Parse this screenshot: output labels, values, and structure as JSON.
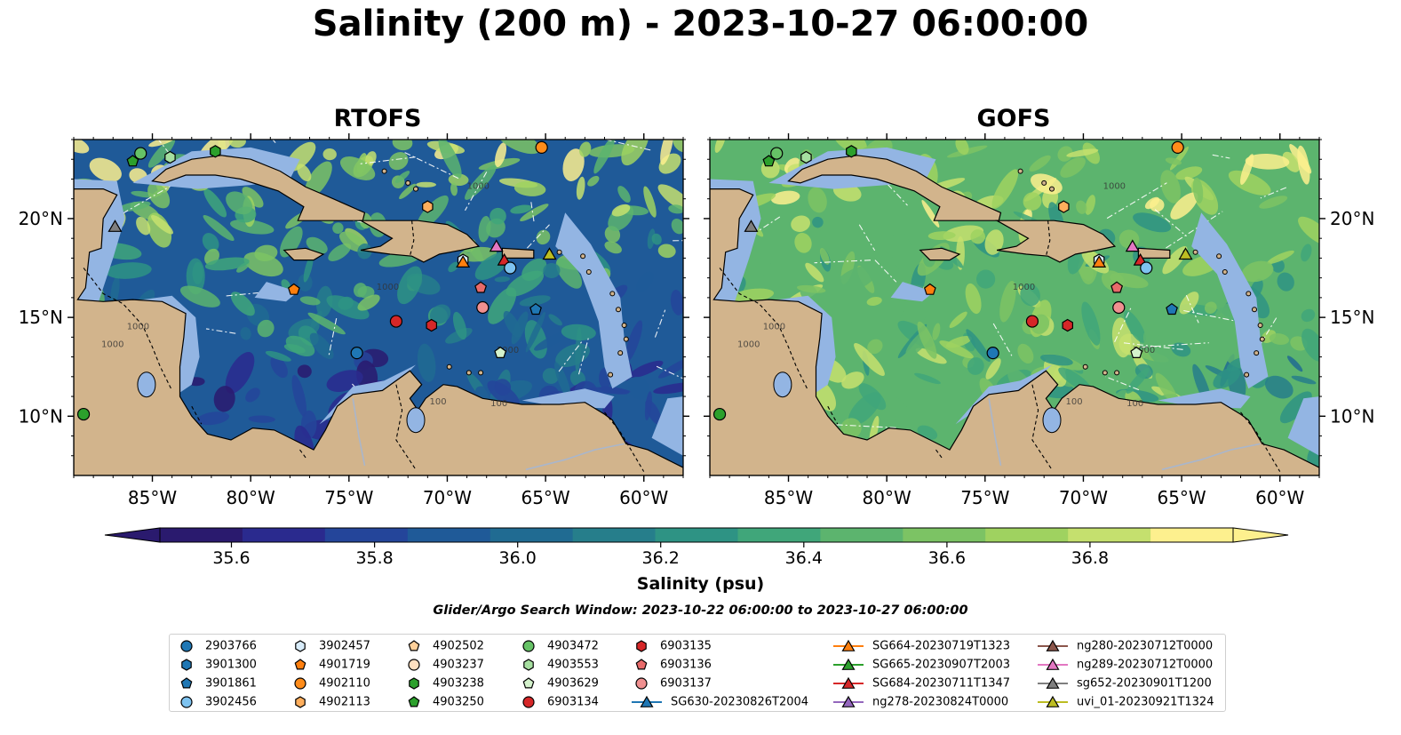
{
  "title": "Salinity (200 m) - 2023-10-27 06:00:00",
  "panels": [
    {
      "title": "RTOFS"
    },
    {
      "title": "GOFS"
    }
  ],
  "map": {
    "lon_range": [
      -89,
      -58
    ],
    "lat_range": [
      7,
      24
    ],
    "lon_ticks": [
      "85°W",
      "80°W",
      "75°W",
      "70°W",
      "65°W",
      "60°W"
    ],
    "lat_ticks": [
      "20°N",
      "15°N",
      "10°N"
    ],
    "colors": {
      "land": "#d2b48c",
      "shelf": "#93b5e3"
    },
    "contour_labels": [
      "1000",
      "1000",
      "1000",
      "1000",
      "100",
      "100",
      "1000"
    ]
  },
  "colorbar": {
    "label": "Salinity (psu)",
    "range": [
      35.5,
      37.0
    ],
    "ticks": [
      "35.6",
      "35.8",
      "36.0",
      "36.2",
      "36.4",
      "36.6",
      "36.8"
    ],
    "colors": [
      "#2a1a6e",
      "#2a2a8e",
      "#24459a",
      "#1f5a98",
      "#206b92",
      "#267e8b",
      "#2e9384",
      "#40a67a",
      "#5cb46e",
      "#7cc364",
      "#9fd260",
      "#c5e06e",
      "#fdf08e"
    ]
  },
  "search_window": "Glider/Argo Search Window: 2023-10-22 06:00:00 to 2023-10-27 06:00:00",
  "legend": [
    {
      "label": "2903766",
      "marker": "circle",
      "color": "#1f77b4"
    },
    {
      "label": "3901300",
      "marker": "hexagon",
      "color": "#1f77b4"
    },
    {
      "label": "3901861",
      "marker": "pentagon",
      "color": "#1f77b4"
    },
    {
      "label": "3902456",
      "marker": "circle",
      "color": "#7ec3f0"
    },
    {
      "label": "3902457",
      "marker": "hexagon",
      "color": "#d8ecfa"
    },
    {
      "label": "4901719",
      "marker": "pentagon",
      "color": "#ff7f0e"
    },
    {
      "label": "4902110",
      "marker": "circle",
      "color": "#ff8c1a"
    },
    {
      "label": "4902113",
      "marker": "hexagon",
      "color": "#ffae5c"
    },
    {
      "label": "4902502",
      "marker": "pentagon",
      "color": "#ffd09a"
    },
    {
      "label": "4903237",
      "marker": "circle",
      "color": "#ffe0c0"
    },
    {
      "label": "4903238",
      "marker": "hexagon",
      "color": "#2ca02c"
    },
    {
      "label": "4903250",
      "marker": "pentagon",
      "color": "#2ca02c"
    },
    {
      "label": "4903472",
      "marker": "circle",
      "color": "#66c266"
    },
    {
      "label": "4903553",
      "marker": "hexagon",
      "color": "#a6dfa0"
    },
    {
      "label": "4903629",
      "marker": "pentagon",
      "color": "#d4f2cc"
    },
    {
      "label": "6903134",
      "marker": "circle",
      "color": "#d62728"
    },
    {
      "label": "6903135",
      "marker": "hexagon",
      "color": "#d62728"
    },
    {
      "label": "6903136",
      "marker": "pentagon",
      "color": "#e86a6a"
    },
    {
      "label": "6903137",
      "marker": "circle",
      "color": "#f09090"
    },
    {
      "label": "SG630-20230826T2004",
      "marker": "triangle",
      "color": "#1f77b4"
    },
    {
      "label": "SG664-20230719T1323",
      "marker": "triangle",
      "color": "#ff7f0e"
    },
    {
      "label": "SG665-20230907T2003",
      "marker": "triangle",
      "color": "#2ca02c"
    },
    {
      "label": "SG684-20230711T1347",
      "marker": "triangle",
      "color": "#d62728"
    },
    {
      "label": "ng278-20230824T0000",
      "marker": "triangle",
      "color": "#9467bd"
    },
    {
      "label": "ng280-20230712T0000",
      "marker": "triangle",
      "color": "#8c564b"
    },
    {
      "label": "ng289-20230712T0000",
      "marker": "triangle",
      "color": "#e377c2"
    },
    {
      "label": "sg652-20230901T1200",
      "marker": "triangle",
      "color": "#7f7f7f"
    },
    {
      "label": "uvi_01-20230921T1324",
      "marker": "triangle",
      "color": "#bcbd22"
    }
  ],
  "observations": [
    {
      "lon": -85.6,
      "lat": 23.3,
      "color": "#66c266",
      "marker": "circle"
    },
    {
      "lon": -86.0,
      "lat": 22.9,
      "color": "#2ca02c",
      "marker": "pentagon"
    },
    {
      "lon": -84.1,
      "lat": 23.1,
      "color": "#a6dfa0",
      "marker": "hexagon"
    },
    {
      "lon": -81.8,
      "lat": 23.4,
      "color": "#2ca02c",
      "marker": "hexagon"
    },
    {
      "lon": -65.2,
      "lat": 23.6,
      "color": "#ff8c1a",
      "marker": "circle"
    },
    {
      "lon": -86.9,
      "lat": 19.6,
      "color": "#7f7f7f",
      "marker": "triangle"
    },
    {
      "lon": -71.0,
      "lat": 20.6,
      "color": "#ffae5c",
      "marker": "hexagon"
    },
    {
      "lon": -77.8,
      "lat": 16.4,
      "color": "#ff7f0e",
      "marker": "pentagon"
    },
    {
      "lon": -69.2,
      "lat": 17.9,
      "color": "#d8ecfa",
      "marker": "hexagon"
    },
    {
      "lon": -69.2,
      "lat": 17.8,
      "color": "#ff7f0e",
      "marker": "triangle"
    },
    {
      "lon": -67.5,
      "lat": 18.6,
      "color": "#e377c2",
      "marker": "triangle"
    },
    {
      "lon": -67.1,
      "lat": 17.9,
      "color": "#d62728",
      "marker": "triangle"
    },
    {
      "lon": -66.8,
      "lat": 17.5,
      "color": "#7ec3f0",
      "marker": "circle"
    },
    {
      "lon": -64.8,
      "lat": 18.2,
      "color": "#bcbd22",
      "marker": "triangle"
    },
    {
      "lon": -68.3,
      "lat": 16.5,
      "color": "#e86a6a",
      "marker": "pentagon"
    },
    {
      "lon": -68.2,
      "lat": 15.5,
      "color": "#f09090",
      "marker": "circle"
    },
    {
      "lon": -65.5,
      "lat": 15.4,
      "color": "#1f77b4",
      "marker": "pentagon"
    },
    {
      "lon": -72.6,
      "lat": 14.8,
      "color": "#d62728",
      "marker": "circle"
    },
    {
      "lon": -70.8,
      "lat": 14.6,
      "color": "#d62728",
      "marker": "hexagon"
    },
    {
      "lon": -67.3,
      "lat": 13.2,
      "color": "#d4f2cc",
      "marker": "pentagon"
    },
    {
      "lon": -74.6,
      "lat": 13.2,
      "color": "#1f77b4",
      "marker": "circle"
    },
    {
      "lon": -88.5,
      "lat": 10.1,
      "color": "#2ca02c",
      "marker": "circle"
    }
  ]
}
